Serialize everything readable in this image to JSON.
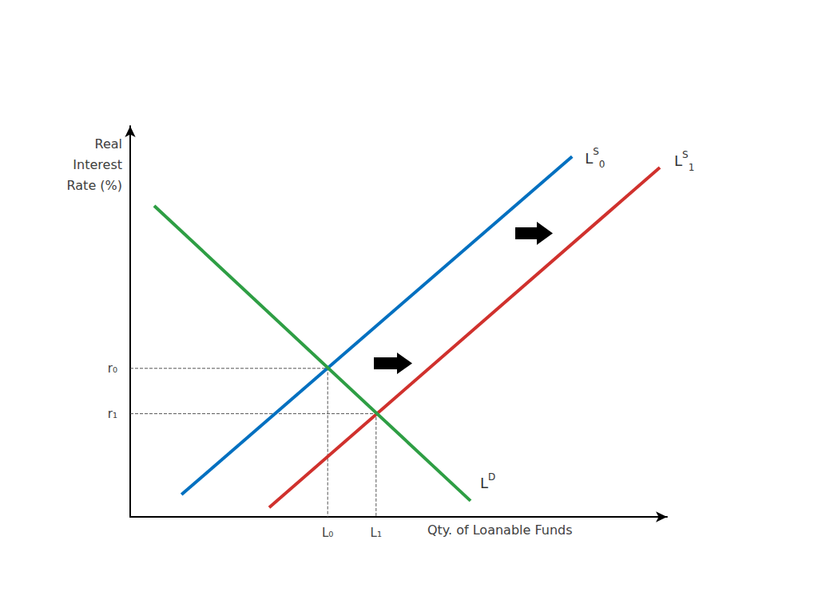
{
  "chart_data": {
    "type": "line",
    "x_label": "Qty. of Loanable Funds",
    "y_label": "Real\nInterest\nRate (%)",
    "xlim": [
      0,
      112
    ],
    "ylim": [
      0,
      100
    ],
    "xticks": [
      {
        "value": 41.2,
        "label": "L₀"
      },
      {
        "value": 51.3,
        "label": "L₁"
      }
    ],
    "yticks": [
      {
        "value": 26.4,
        "label": "r₁"
      },
      {
        "value": 38.0,
        "label": "r₀"
      }
    ],
    "grid": false,
    "series": [
      {
        "label": {
          "text": "L",
          "sup": "S",
          "sub": "0"
        },
        "color": "#0070C0",
        "x": [
          10.7,
          92.2
        ],
        "values": [
          5.7,
          92.2
        ]
      },
      {
        "label": {
          "text": "L",
          "sup": "S",
          "sub": "1"
        },
        "color": "#D0312D",
        "x": [
          29.0,
          110.5
        ],
        "values": [
          2.4,
          89.4
        ]
      },
      {
        "label": {
          "text": "L",
          "sup": "D",
          "sub": ""
        },
        "color": "#2E9E44",
        "x": [
          5.0,
          71.0
        ],
        "values": [
          79.6,
          4.1
        ]
      }
    ],
    "equilibria": [
      {
        "x": 41.2,
        "y": 38.0
      },
      {
        "x": 51.3,
        "y": 26.4
      }
    ]
  }
}
